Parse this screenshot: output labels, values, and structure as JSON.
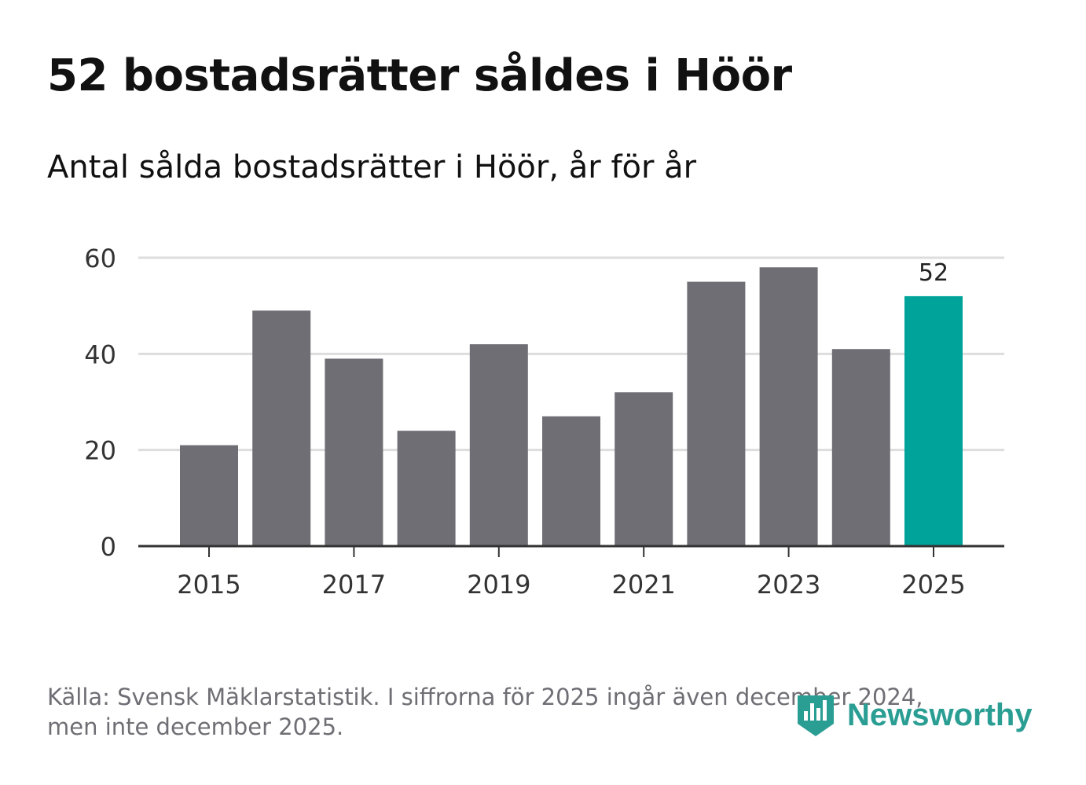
{
  "title": "52 bostadsrätter såldes i Höör",
  "subtitle": "Antal sålda bostadsrätter i Höör, år för år",
  "footnote": {
    "line1": "Källa: Svensk Mäklarstatistik. I siffrorna för 2025 ingår även december 2024,",
    "line2": "men inte december 2025."
  },
  "logo": {
    "text": "Newsworthy",
    "icon": "bar-chart-shield-icon"
  },
  "colors": {
    "bar": "#6f6e74",
    "highlight": "#00a39a",
    "grid": "#dddddd",
    "axis": "#333333",
    "text": "#333333",
    "brand": "#2b9e94"
  },
  "chart_data": {
    "type": "bar",
    "title": "52 bostadsrätter såldes i Höör",
    "subtitle": "Antal sålda bostadsrätter i Höör, år för år",
    "xlabel": "",
    "ylabel": "",
    "categories": [
      "2015",
      "2016",
      "2017",
      "2018",
      "2019",
      "2020",
      "2021",
      "2022",
      "2023",
      "2024",
      "2025"
    ],
    "values": [
      21,
      49,
      39,
      24,
      42,
      27,
      32,
      55,
      58,
      41,
      52
    ],
    "highlight_index": 10,
    "highlight_label": "52",
    "x_tick_labels": [
      "2015",
      "2017",
      "2019",
      "2021",
      "2023",
      "2025"
    ],
    "y_ticks": [
      0,
      20,
      40,
      60
    ],
    "ylim": [
      0,
      60
    ],
    "grid": true
  }
}
